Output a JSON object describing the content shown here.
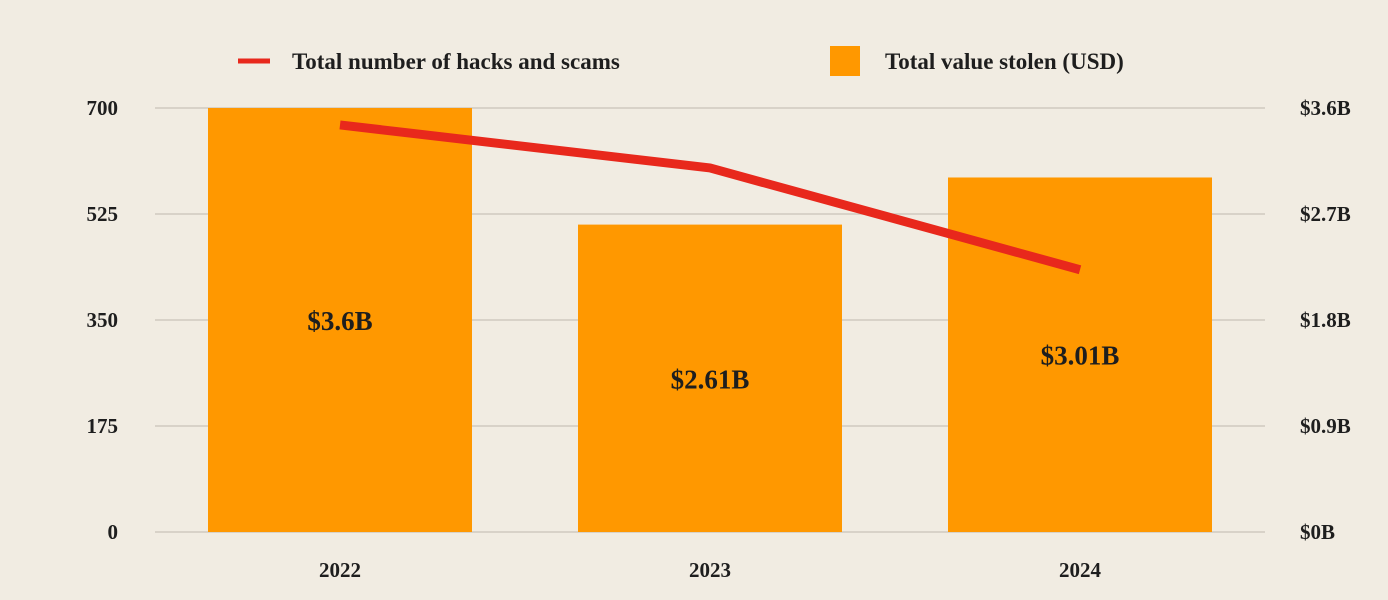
{
  "chart_data": {
    "type": "bar+line",
    "categories": [
      "2022",
      "2023",
      "2024"
    ],
    "series": [
      {
        "name": "Total value stolen (USD)",
        "type": "bar",
        "axis": "right",
        "values": [
          3.6,
          2.61,
          3.01
        ],
        "labels": [
          "$3.6B",
          "$2.61B",
          "$3.01B"
        ],
        "color": "#ff9800"
      },
      {
        "name": "Total number of hacks and scams",
        "type": "line",
        "axis": "left",
        "values": [
          672,
          601,
          433
        ],
        "color": "#e8281c"
      }
    ],
    "left_axis": {
      "ylim": [
        0,
        700
      ],
      "ticks": [
        "0",
        "175",
        "350",
        "525",
        "700"
      ]
    },
    "right_axis": {
      "ylim": [
        0,
        3.6
      ],
      "ticks": [
        "$0B",
        "$0.9B",
        "$1.8B",
        "$2.7B",
        "$3.6B"
      ]
    },
    "grid": true,
    "legend": "top"
  }
}
